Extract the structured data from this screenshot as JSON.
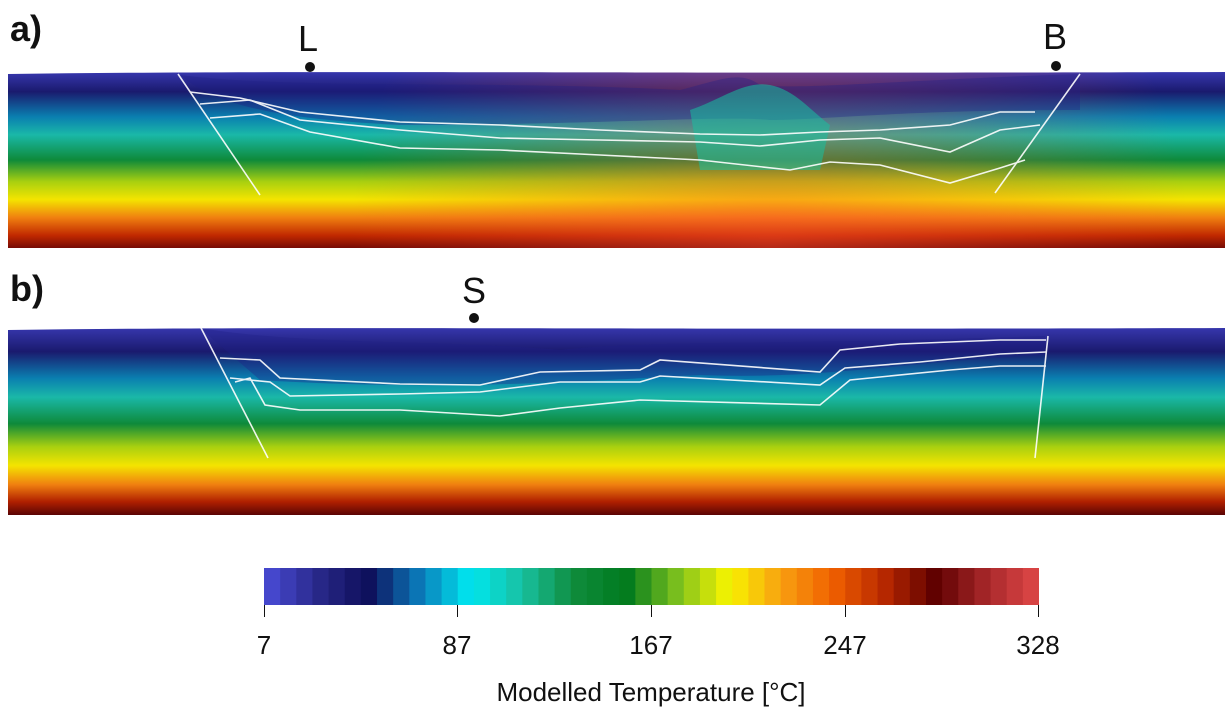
{
  "panels": {
    "a": {
      "label": "a)",
      "wells": [
        "L",
        "B"
      ]
    },
    "b": {
      "label": "b)",
      "wells": [
        "S"
      ]
    }
  },
  "colorbar": {
    "title": "Modelled Temperature [°C]",
    "ticks": [
      "7",
      "87",
      "167",
      "247",
      "328"
    ],
    "min": 7,
    "max": 328,
    "colors": [
      "#4a4cd8",
      "#2a2a8c",
      "#0e0e5a",
      "#0b78b8",
      "#00e8f0",
      "#19c0a0",
      "#0f8c3c",
      "#007a1e",
      "#7cc01e",
      "#f8f500",
      "#f8a010",
      "#f06000",
      "#b82800",
      "#5e0000",
      "#a8282a",
      "#e04848"
    ]
  }
}
